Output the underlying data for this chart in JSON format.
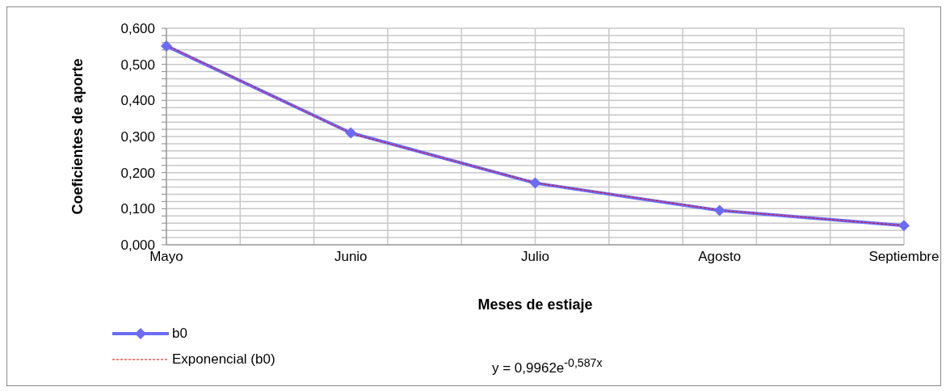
{
  "chart_data": {
    "type": "line",
    "xlabel": "Meses de estiaje",
    "ylabel": "Coeficientes de aporte",
    "categories": [
      "Mayo",
      "Junio",
      "Julio",
      "Agosto",
      "Septiembre"
    ],
    "series": [
      {
        "name": "b0",
        "color": "#6b6bf5",
        "values": [
          0.551,
          0.31,
          0.171,
          0.095,
          0.053
        ],
        "marker": "diamond",
        "line_style": "solid"
      },
      {
        "name": "Exponencial (b0)",
        "type": "line",
        "color": "#ff0000",
        "values": [
          0.553,
          0.309,
          0.172,
          0.096,
          0.053
        ],
        "marker": "none",
        "line_style": "dashed"
      }
    ],
    "ylim": [
      0,
      0.6
    ],
    "yticks": [
      {
        "value": 0,
        "label": "0,000"
      },
      {
        "value": 0.02,
        "label": null
      },
      {
        "value": 0.04,
        "label": null
      },
      {
        "value": 0.06,
        "label": null
      },
      {
        "value": 0.08,
        "label": null
      },
      {
        "value": 0.1,
        "label": "0,100"
      },
      {
        "value": 0.12,
        "label": null
      },
      {
        "value": 0.14,
        "label": null
      },
      {
        "value": 0.16,
        "label": null
      },
      {
        "value": 0.18,
        "label": null
      },
      {
        "value": 0.2,
        "label": "0,200"
      },
      {
        "value": 0.22,
        "label": null
      },
      {
        "value": 0.24,
        "label": null
      },
      {
        "value": 0.26,
        "label": null
      },
      {
        "value": 0.28,
        "label": null
      },
      {
        "value": 0.3,
        "label": "0,300"
      },
      {
        "value": 0.32,
        "label": null
      },
      {
        "value": 0.34,
        "label": null
      },
      {
        "value": 0.36,
        "label": null
      },
      {
        "value": 0.38,
        "label": null
      },
      {
        "value": 0.4,
        "label": "0,400"
      },
      {
        "value": 0.42,
        "label": null
      },
      {
        "value": 0.44,
        "label": null
      },
      {
        "value": 0.46,
        "label": null
      },
      {
        "value": 0.48,
        "label": null
      },
      {
        "value": 0.5,
        "label": "0,500"
      },
      {
        "value": 0.52,
        "label": null
      },
      {
        "value": 0.54,
        "label": null
      },
      {
        "value": 0.56,
        "label": null
      },
      {
        "value": 0.58,
        "label": null
      },
      {
        "value": 0.6,
        "label": "0,600"
      }
    ],
    "grid": true,
    "legend": "bottom left",
    "annotations": [
      "y = 0,9962e$^{-0,587x}$"
    ]
  }
}
